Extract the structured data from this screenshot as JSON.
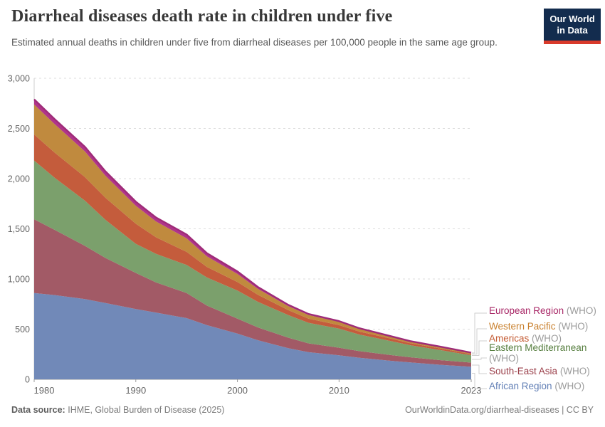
{
  "header": {
    "title": "Diarrheal diseases death rate in children under five",
    "subtitle": "Estimated annual deaths in children under five from diarrheal diseases per 100,000 people in the same age group.",
    "logo": {
      "line1": "Our World",
      "line2": "in Data",
      "bg_color": "#132c4e",
      "accent_color": "#d93a2b"
    }
  },
  "chart_data": {
    "type": "area",
    "stacked": true,
    "title": "Diarrheal diseases death rate in children under five",
    "xlabel": "",
    "ylabel": "",
    "x": [
      1980,
      1982,
      1985,
      1987,
      1990,
      1992,
      1995,
      1997,
      2000,
      2002,
      2005,
      2007,
      2010,
      2012,
      2015,
      2017,
      2020,
      2023
    ],
    "series": [
      {
        "name": "European Region",
        "color": "#b0348a",
        "edge_color": "#9e2b78",
        "text_color": "#a82766",
        "values": [
          50,
          49,
          46,
          44,
          40,
          39,
          38,
          32,
          25,
          18,
          12,
          10,
          8,
          7,
          6,
          5,
          5,
          4
        ]
      },
      {
        "name": "Western Pacific",
        "color": "#c08a3e",
        "text_color": "#c9802d",
        "values": [
          300,
          285,
          255,
          220,
          180,
          158,
          135,
          105,
          80,
          60,
          40,
          36,
          32,
          26,
          18,
          16,
          13,
          11
        ]
      },
      {
        "name": "Americas",
        "color": "#c45c3c",
        "text_color": "#c45b33",
        "values": [
          260,
          250,
          235,
          220,
          200,
          165,
          130,
          105,
          85,
          70,
          50,
          42,
          35,
          30,
          25,
          20,
          16,
          12
        ]
      },
      {
        "name": "Eastern Mediterranean",
        "color": "#7ba06c",
        "text_color": "#557d3e",
        "values": [
          585,
          520,
          450,
          380,
          290,
          285,
          280,
          280,
          280,
          255,
          225,
          205,
          190,
          165,
          140,
          120,
          100,
          72
        ]
      },
      {
        "name": "South-East Asia",
        "color": "#a25a66",
        "text_color": "#9a3e49",
        "values": [
          735,
          650,
          530,
          450,
          360,
          300,
          250,
          195,
          150,
          128,
          105,
          88,
          75,
          66,
          58,
          52,
          46,
          42
        ]
      },
      {
        "name": "African Region",
        "color": "#7189b8",
        "text_color": "#6380b6",
        "values": [
          860,
          840,
          800,
          760,
          700,
          665,
          610,
          540,
          455,
          390,
          310,
          270,
          240,
          215,
          185,
          168,
          145,
          125
        ]
      }
    ],
    "legend_suffix": "(WHO)",
    "legend_position": "right",
    "grid": true,
    "xlim": [
      1980,
      2023
    ],
    "ylim": [
      0,
      3000
    ],
    "xticks": [
      1980,
      1990,
      2000,
      2010,
      2023
    ],
    "yticks": [
      0,
      500,
      1000,
      1500,
      2000,
      2500,
      3000
    ],
    "ytick_labels": [
      "0",
      "500",
      "1,000",
      "1,500",
      "2,000",
      "2,500",
      "3,000"
    ]
  },
  "footer": {
    "source_label": "Data source:",
    "source_text": "IHME, Global Burden of Disease (2025)",
    "link_text": "OurWorldinData.org/diarrheal-diseases | CC BY"
  }
}
